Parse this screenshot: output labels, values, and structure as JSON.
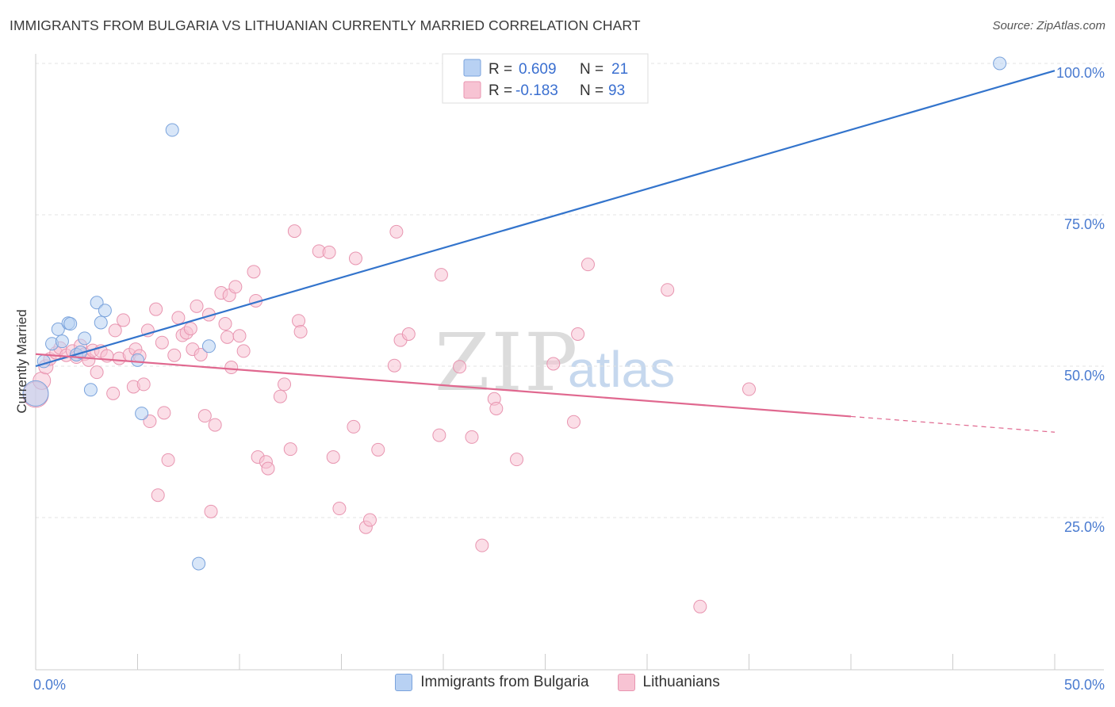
{
  "title": "IMMIGRANTS FROM BULGARIA VS LITHUANIAN CURRENTLY MARRIED CORRELATION CHART",
  "source": "Source: ZipAtlas.com",
  "watermark": {
    "zip": "ZIP",
    "atlas": "atlas"
  },
  "legend_box": {
    "rows": [
      {
        "r_label": "R =",
        "r_value": "0.609",
        "n_label": "N =",
        "n_value": "21"
      },
      {
        "r_label": "R =",
        "r_value": "-0.183",
        "n_label": "N =",
        "n_value": "93"
      }
    ]
  },
  "bottom_legend": [
    "Immigrants from Bulgaria",
    "Lithuanians"
  ],
  "colors": {
    "blue_fill": "#b8d1f3",
    "blue_stroke": "#7aa3dc",
    "blue_line": "#3374cc",
    "pink_fill": "#f7c3d3",
    "pink_stroke": "#e895b0",
    "pink_line": "#e0688f",
    "grid": "#e3e3e3",
    "axis": "#cccccc"
  },
  "chart_data": {
    "type": "scatter",
    "title": "IMMIGRANTS FROM BULGARIA VS LITHUANIAN CURRENTLY MARRIED CORRELATION CHART",
    "xlabel": "",
    "ylabel": "Currently Married",
    "xlim": [
      0,
      50
    ],
    "ylim": [
      0,
      105
    ],
    "x_tick_labels": [
      "0.0%",
      "50.0%"
    ],
    "y_ticks": [
      25,
      50,
      75,
      100
    ],
    "y_tick_labels": [
      "25.0%",
      "50.0%",
      "75.0%",
      "100.0%"
    ],
    "grid": true,
    "legend_placement": "top-center",
    "series": [
      {
        "name": "Immigrants from Bulgaria",
        "R": 0.609,
        "N": 21,
        "points": [
          [
            0.0,
            45.5,
            16
          ],
          [
            0.4,
            50.8,
            8
          ],
          [
            0.8,
            53.7,
            8
          ],
          [
            1.1,
            56.1,
            8
          ],
          [
            1.3,
            54.1,
            8
          ],
          [
            1.6,
            57.1,
            8
          ],
          [
            1.7,
            57.0,
            8
          ],
          [
            2.0,
            51.9,
            8
          ],
          [
            2.2,
            52.3,
            8
          ],
          [
            2.4,
            54.6,
            8
          ],
          [
            2.7,
            46.1,
            8
          ],
          [
            3.0,
            60.5,
            8
          ],
          [
            3.2,
            57.2,
            8
          ],
          [
            3.4,
            59.2,
            8
          ],
          [
            5.0,
            51.0,
            8
          ],
          [
            5.2,
            42.2,
            8
          ],
          [
            6.7,
            89.0,
            8
          ],
          [
            8.0,
            17.4,
            8
          ],
          [
            8.5,
            53.3,
            8
          ],
          [
            47.3,
            100.0,
            8
          ]
        ],
        "trend": {
          "x": [
            0,
            50
          ],
          "y": [
            50.0,
            98.8
          ],
          "style": "solid"
        }
      },
      {
        "name": "Lithuanians",
        "R": -0.183,
        "N": 93,
        "points": [
          [
            0.0,
            45.3,
            16
          ],
          [
            0.3,
            47.6,
            11
          ],
          [
            0.5,
            49.9,
            9
          ],
          [
            0.7,
            51.2,
            8
          ],
          [
            1.0,
            52.2,
            8
          ],
          [
            1.2,
            53.0,
            8
          ],
          [
            1.5,
            51.8,
            8
          ],
          [
            1.8,
            52.5,
            8
          ],
          [
            2.0,
            51.5,
            8
          ],
          [
            2.2,
            53.4,
            8
          ],
          [
            2.4,
            52.0,
            8
          ],
          [
            2.6,
            51.0,
            8
          ],
          [
            2.8,
            52.6,
            8
          ],
          [
            3.0,
            49.0,
            8
          ],
          [
            3.2,
            52.5,
            8
          ],
          [
            3.5,
            51.7,
            8
          ],
          [
            3.8,
            45.5,
            8
          ],
          [
            3.9,
            55.9,
            8
          ],
          [
            4.1,
            51.3,
            8
          ],
          [
            4.3,
            57.6,
            8
          ],
          [
            4.6,
            51.9,
            8
          ],
          [
            4.8,
            46.6,
            8
          ],
          [
            4.9,
            52.8,
            8
          ],
          [
            5.1,
            51.7,
            8
          ],
          [
            5.3,
            47.0,
            8
          ],
          [
            5.5,
            55.9,
            8
          ],
          [
            5.6,
            40.9,
            8
          ],
          [
            5.9,
            59.4,
            8
          ],
          [
            6.0,
            28.7,
            8
          ],
          [
            6.2,
            53.9,
            8
          ],
          [
            6.3,
            42.3,
            8
          ],
          [
            6.5,
            34.5,
            8
          ],
          [
            6.8,
            51.8,
            8
          ],
          [
            7.0,
            58.0,
            8
          ],
          [
            7.2,
            55.1,
            8
          ],
          [
            7.4,
            55.5,
            8
          ],
          [
            7.6,
            56.2,
            8
          ],
          [
            7.7,
            52.8,
            8
          ],
          [
            7.9,
            59.9,
            8
          ],
          [
            8.1,
            51.9,
            8
          ],
          [
            8.3,
            41.8,
            8
          ],
          [
            8.5,
            58.5,
            8
          ],
          [
            8.6,
            26.0,
            8
          ],
          [
            8.8,
            40.3,
            8
          ],
          [
            9.1,
            62.1,
            8
          ],
          [
            9.3,
            57.0,
            8
          ],
          [
            9.4,
            54.8,
            8
          ],
          [
            9.5,
            61.7,
            8
          ],
          [
            9.6,
            49.8,
            8
          ],
          [
            9.8,
            63.1,
            8
          ],
          [
            10.0,
            55.0,
            8
          ],
          [
            10.2,
            52.5,
            8
          ],
          [
            10.7,
            65.6,
            8
          ],
          [
            10.8,
            60.8,
            8
          ],
          [
            10.9,
            35.0,
            8
          ],
          [
            11.3,
            34.2,
            8
          ],
          [
            11.4,
            33.1,
            8
          ],
          [
            12.0,
            45.0,
            8
          ],
          [
            12.2,
            47.0,
            8
          ],
          [
            12.5,
            36.3,
            8
          ],
          [
            12.7,
            72.3,
            8
          ],
          [
            12.9,
            57.5,
            8
          ],
          [
            13.0,
            55.7,
            8
          ],
          [
            13.9,
            69.0,
            8
          ],
          [
            14.4,
            68.8,
            8
          ],
          [
            14.6,
            35.0,
            8
          ],
          [
            14.9,
            26.5,
            8
          ],
          [
            15.7,
            67.8,
            8
          ],
          [
            15.6,
            40.0,
            8
          ],
          [
            16.2,
            23.4,
            8
          ],
          [
            16.4,
            24.6,
            8
          ],
          [
            16.8,
            36.2,
            8
          ],
          [
            17.6,
            50.1,
            8
          ],
          [
            17.7,
            72.2,
            8
          ],
          [
            17.9,
            54.3,
            8
          ],
          [
            18.3,
            55.3,
            8
          ],
          [
            19.9,
            65.1,
            8
          ],
          [
            19.8,
            38.6,
            8
          ],
          [
            20.8,
            49.9,
            8
          ],
          [
            21.4,
            38.3,
            8
          ],
          [
            21.9,
            20.4,
            8
          ],
          [
            22.5,
            44.6,
            8
          ],
          [
            22.6,
            43.0,
            8
          ],
          [
            23.6,
            34.6,
            8
          ],
          [
            25.4,
            50.4,
            8
          ],
          [
            26.4,
            40.8,
            8
          ],
          [
            26.6,
            55.3,
            8
          ],
          [
            27.1,
            66.8,
            8
          ],
          [
            31.0,
            62.6,
            8
          ],
          [
            32.6,
            10.3,
            8
          ],
          [
            35.0,
            46.2,
            8
          ]
        ],
        "trend": {
          "x": [
            0,
            40
          ],
          "y": [
            52.0,
            41.7
          ],
          "style": "solid",
          "extension": {
            "x": [
              40,
              50
            ],
            "y": [
              41.7,
              39.1
            ],
            "style": "dashed"
          }
        }
      }
    ]
  }
}
